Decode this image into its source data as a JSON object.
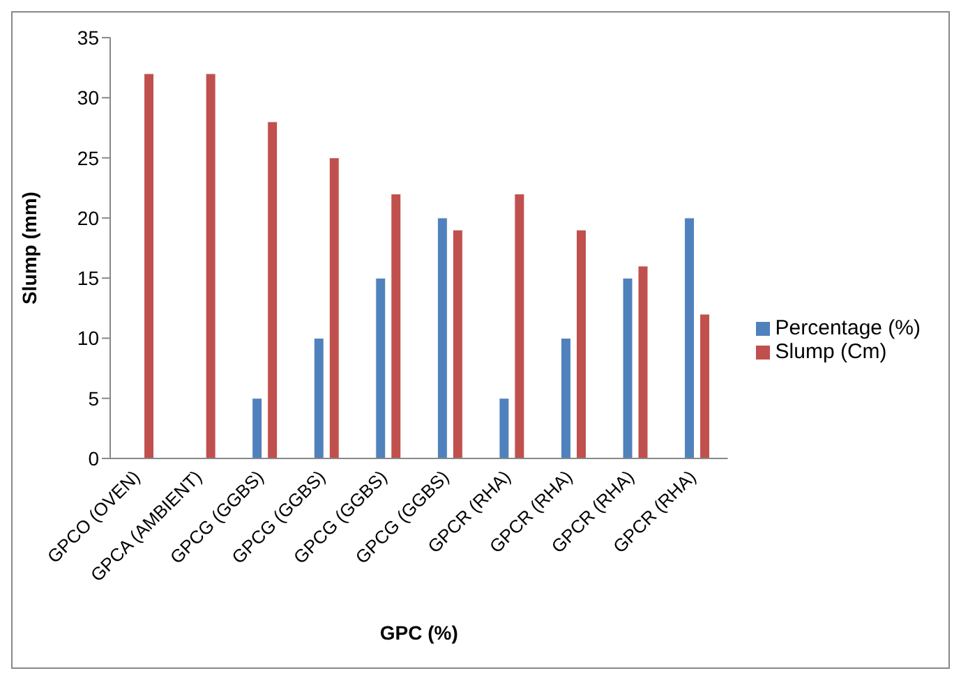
{
  "chart_data": {
    "type": "bar",
    "xlabel": "GPC (%)",
    "ylabel": "Slump (mm)",
    "categories": [
      "GPCO (OVEN)",
      "GPCA (AMBIENT)",
      "GPCG (GGBS)",
      "GPCG (GGBS)",
      "GPCG (GGBS)",
      "GPCG (GGBS)",
      "GPCR (RHA)",
      "GPCR (RHA)",
      "GPCR (RHA)",
      "GPCR (RHA)"
    ],
    "series": [
      {
        "name": "Percentage (%)",
        "color": "#4f81bd",
        "values": [
          0,
          0,
          5,
          10,
          15,
          20,
          5,
          10,
          15,
          20
        ]
      },
      {
        "name": "Slump (Cm)",
        "color": "#c0504d",
        "values": [
          32,
          32,
          28,
          25,
          22,
          19,
          22,
          19,
          16,
          12
        ]
      }
    ],
    "ylim": [
      0,
      35
    ],
    "yticks": [
      0,
      5,
      10,
      15,
      20,
      25,
      30,
      35
    ],
    "grid": false,
    "legend": "right"
  }
}
